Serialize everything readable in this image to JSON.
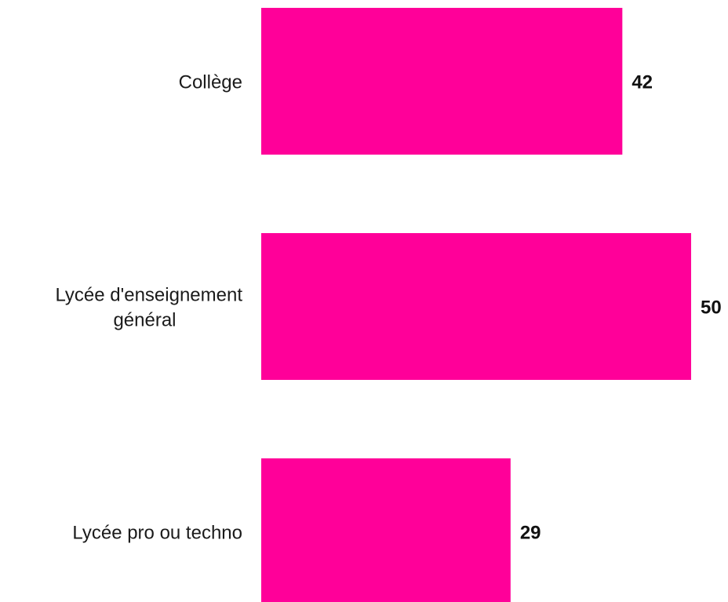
{
  "chart_data": {
    "type": "bar",
    "orientation": "horizontal",
    "categories": [
      [
        "Collège"
      ],
      [
        "Lycée d'enseignement",
        "général"
      ],
      [
        "Lycée pro ou techno"
      ]
    ],
    "values": [
      42,
      50,
      29
    ],
    "value_labels": [
      "42",
      "50",
      "29"
    ],
    "title": "",
    "xlabel": "",
    "ylabel": "",
    "xlim": [
      0,
      50
    ],
    "grid": false,
    "legend": "none",
    "bar_color": "#FF0099"
  }
}
